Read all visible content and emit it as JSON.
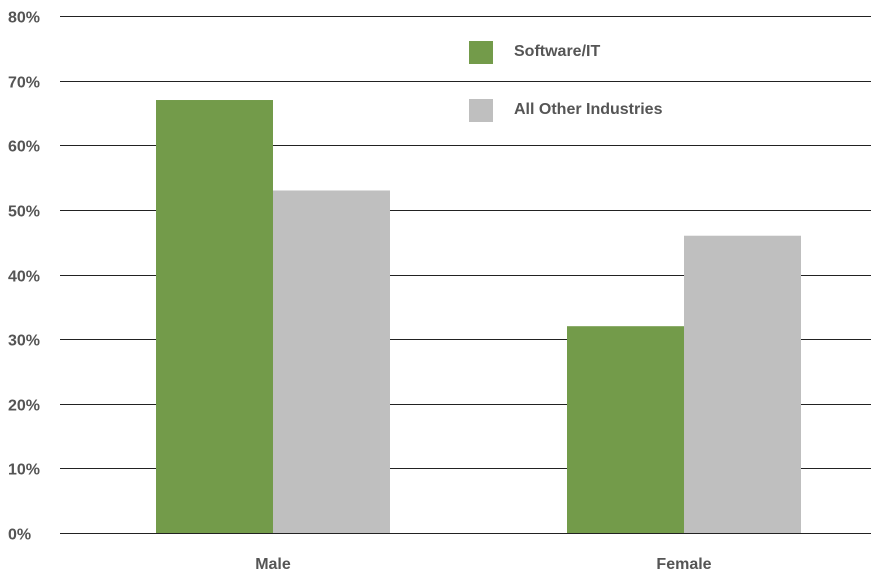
{
  "chart_data": {
    "type": "bar",
    "title": "",
    "xlabel": "",
    "ylabel": "",
    "ylim": [
      0,
      80
    ],
    "y_ticks": [
      "0%",
      "10%",
      "20%",
      "30%",
      "40%",
      "50%",
      "60%",
      "70%",
      "80%"
    ],
    "y_tick_values": [
      0,
      10,
      20,
      30,
      40,
      50,
      60,
      70,
      80
    ],
    "categories": [
      "Male",
      "Female"
    ],
    "series": [
      {
        "name": "Software/IT",
        "values": [
          67,
          32
        ],
        "color": "#739b4a"
      },
      {
        "name": "All Other Industries",
        "values": [
          53,
          46
        ],
        "color": "#bfbfbf"
      }
    ],
    "grid": true,
    "legend_position": "top-right",
    "unit": "%"
  }
}
